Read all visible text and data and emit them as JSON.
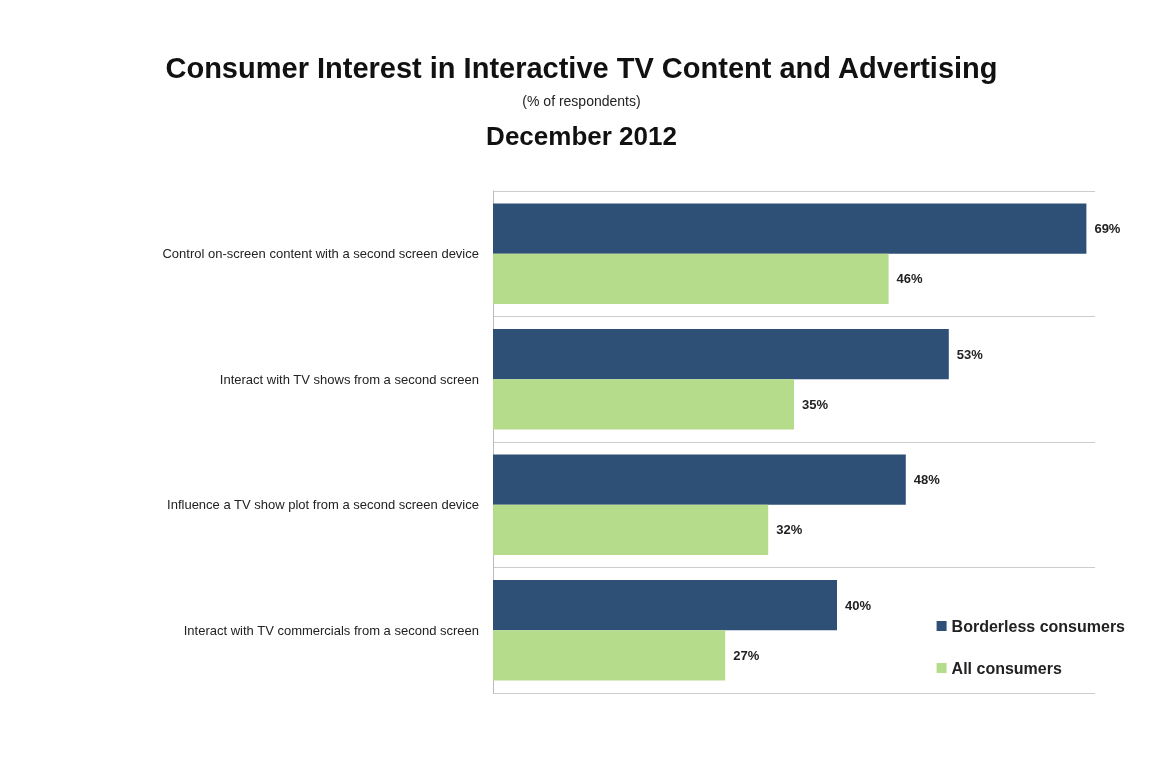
{
  "chart_data": {
    "type": "bar",
    "orientation": "horizontal",
    "title": "Consumer Interest in Interactive TV Content and Advertising",
    "subtitle": "(% of respondents)",
    "annotations": [
      "December 2012"
    ],
    "categories": [
      "Control on-screen content with a second screen device",
      "Interact with TV shows from a second screen",
      "Influence a TV show plot from a second screen device",
      "Interact with TV commercials from a second screen"
    ],
    "series": [
      {
        "name": "Borderless consumers",
        "color": "#2e5077",
        "values": [
          69,
          53,
          48,
          40
        ],
        "value_labels": [
          "69%",
          "53%",
          "48%",
          "40%"
        ]
      },
      {
        "name": "All consumers",
        "color": "#b5dc8a",
        "values": [
          46,
          35,
          32,
          27
        ],
        "value_labels": [
          "46%",
          "35%",
          "32%",
          "27%"
        ]
      }
    ],
    "legend": "bottom right"
  }
}
